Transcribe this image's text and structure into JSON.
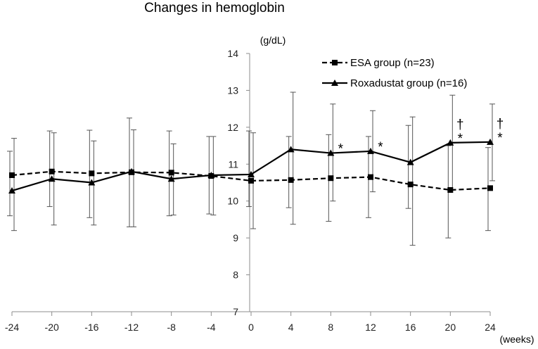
{
  "chart_data": {
    "type": "line",
    "title": "Changes in hemoglobin",
    "ylabel": "(g/dL)",
    "xlabel": "(weeks)",
    "x": [
      -24,
      -20,
      -16,
      -12,
      -8,
      -4,
      0,
      4,
      8,
      12,
      16,
      20,
      24
    ],
    "x_tick_labels": [
      "-24",
      "-20",
      "-16",
      "-12",
      "-8",
      "-4",
      "0",
      "4",
      "8",
      "12",
      "16",
      "20",
      "24"
    ],
    "y_ticks": [
      7,
      8,
      9,
      10,
      11,
      12,
      13,
      14
    ],
    "y_tick_labels": [
      "7",
      "8",
      "9",
      "10",
      "11",
      "12",
      "13",
      "14"
    ],
    "ylim": [
      7,
      14
    ],
    "xlim": [
      -24,
      24
    ],
    "grid": false,
    "legend_position": "top-right",
    "series": [
      {
        "name": "ESA group (n=23)",
        "style": "dashed",
        "marker": "square",
        "values": [
          10.7,
          10.8,
          10.75,
          10.78,
          10.77,
          10.68,
          10.55,
          10.57,
          10.62,
          10.65,
          10.45,
          10.3,
          10.35
        ],
        "err_low": [
          9.6,
          9.85,
          9.55,
          9.3,
          9.6,
          9.65,
          9.85,
          9.82,
          9.45,
          9.55,
          9.8,
          9.0,
          9.2
        ],
        "err_high": [
          11.35,
          11.9,
          11.92,
          12.25,
          11.9,
          11.75,
          11.9,
          11.75,
          11.8,
          11.75,
          12.05,
          11.5,
          11.45
        ]
      },
      {
        "name": "Roxadustat group (n=16)",
        "style": "solid",
        "marker": "triangle",
        "values": [
          10.28,
          10.6,
          10.5,
          10.8,
          10.6,
          10.7,
          10.72,
          11.4,
          11.3,
          11.35,
          11.05,
          11.58,
          11.6
        ],
        "err_low": [
          9.2,
          9.35,
          9.35,
          9.3,
          9.62,
          9.62,
          9.25,
          9.37,
          10.0,
          10.25,
          8.8,
          10.3,
          10.55
        ],
        "err_high": [
          11.7,
          11.85,
          11.63,
          11.93,
          11.55,
          11.75,
          11.85,
          12.95,
          12.63,
          12.45,
          12.28,
          12.87,
          12.63
        ]
      }
    ],
    "annotations": [
      {
        "x": 8,
        "y": 11.3,
        "text": "*"
      },
      {
        "x": 12,
        "y": 11.35,
        "text": "*"
      },
      {
        "x": 20,
        "y": 11.58,
        "text": "*"
      },
      {
        "x": 24,
        "y": 11.6,
        "text": "*"
      },
      {
        "x": 20,
        "y": 11.58,
        "text": "†"
      },
      {
        "x": 24,
        "y": 11.6,
        "text": "†"
      }
    ]
  }
}
